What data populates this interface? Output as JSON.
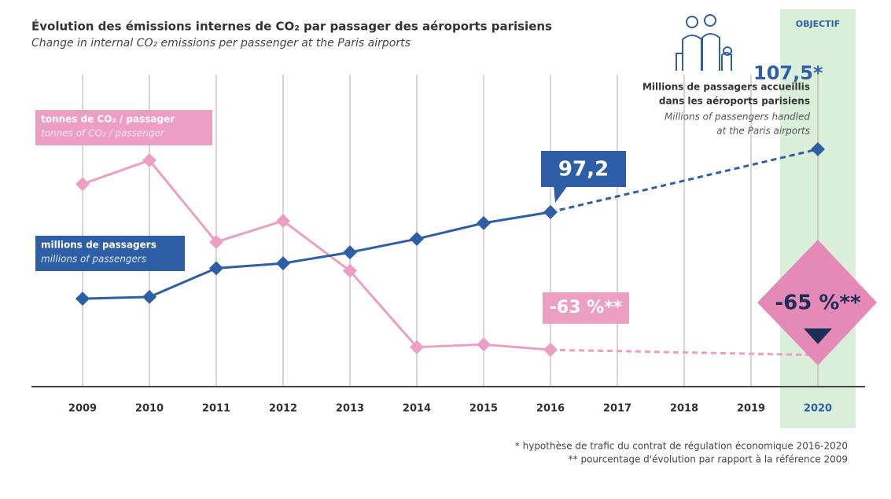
{
  "chart_data": {
    "type": "line",
    "title": "Évolution des émissions internes de CO₂ par passager des aéroports parisiens",
    "subtitle": "Change in internal CO₂ emissions per passenger at the Paris airports",
    "categories": [
      "2009",
      "2010",
      "2011",
      "2012",
      "2013",
      "2014",
      "2015",
      "2016",
      "2017",
      "2018",
      "2019",
      "2020"
    ],
    "highlight_label": "OBJECTIF",
    "ylim": [
      68.6,
      126.8
    ],
    "y2lim": [
      0.23,
      1.58
    ],
    "series": [
      {
        "name": "millions de passagers",
        "name_en": "millions of passengers",
        "color": "#2e5ea6",
        "values": [
          83.0,
          83.3,
          88.0,
          88.8,
          90.6,
          92.8,
          95.4,
          97.2,
          null,
          null,
          null,
          107.5
        ],
        "value_labels": [
          null,
          null,
          null,
          null,
          null,
          null,
          null,
          "97,2",
          null,
          null,
          null,
          "107,5*"
        ]
      },
      {
        "name": "tonnes de CO₂ / passager",
        "name_en": "tonnes of CO₂ / passenger",
        "color": "#ec9fc3",
        "axis": "y2",
        "values": [
          1.0,
          1.09,
          0.78,
          0.86,
          0.67,
          0.38,
          0.39,
          0.37,
          null,
          null,
          null,
          0.35
        ]
      }
    ],
    "annotations": [
      "-63 %**",
      "-65 %**"
    ],
    "passenger_note": [
      "Millions de passagers accueillis",
      "dans les aéroports parisiens",
      "Millions of passengers handled",
      "at the Paris airports"
    ],
    "footnotes": [
      "* hypothèse de trafic du contrat de régulation économique 2016-2020",
      "** pourcentage d'évolution par rapport à la référence 2009"
    ]
  }
}
